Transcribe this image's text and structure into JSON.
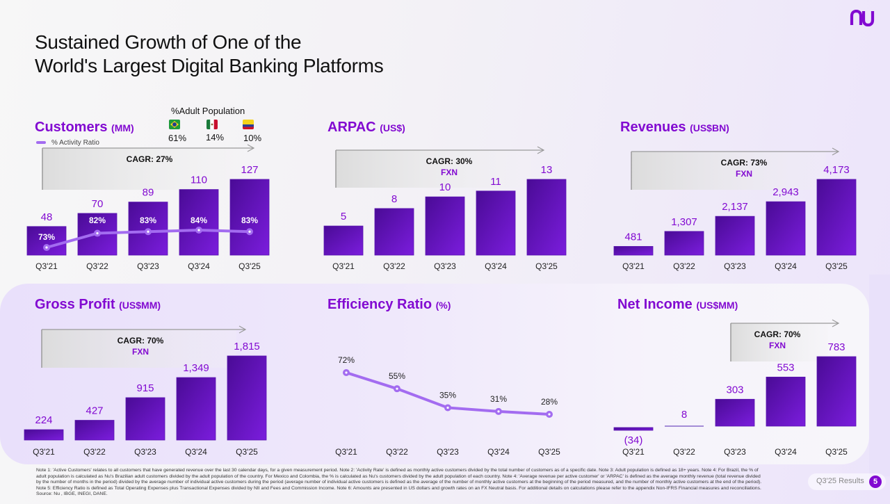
{
  "header": {
    "title_line1": "Sustained Growth of One of the",
    "title_line2": "World's Largest Digital Banking Platforms",
    "logo": "nu"
  },
  "colors": {
    "brand_purple": "#820ad1",
    "bar_dark": "#4a0b96",
    "bar_light": "#7b1ddd",
    "line": "#a36cf0",
    "cagr_box": "#e6e6e6",
    "arrow": "#9a9a9a"
  },
  "customers_extras": {
    "population_title": "%Adult Population",
    "flags": [
      {
        "icon": "brazil-flag-icon",
        "pct": "61%"
      },
      {
        "icon": "mexico-flag-icon",
        "pct": "14%"
      },
      {
        "icon": "colombia-flag-icon",
        "pct": "10%"
      }
    ],
    "legend_label": "% Activity Ratio"
  },
  "chart_data": [
    {
      "id": "customers",
      "type": "bar",
      "title": "Customers",
      "unit": "(MM)",
      "categories": [
        "Q3'21",
        "Q3'22",
        "Q3'23",
        "Q3'24",
        "Q3'25"
      ],
      "values": [
        48,
        70,
        89,
        110,
        127
      ],
      "labels": [
        "48",
        "70",
        "89",
        "110",
        "127"
      ],
      "cagr": "CAGR: 27%",
      "cagr_sub": "",
      "line_series": {
        "name": "% Activity Ratio",
        "values": [
          73,
          82,
          83,
          84,
          83
        ],
        "labels": [
          "73%",
          "82%",
          "83%",
          "84%",
          "83%"
        ]
      }
    },
    {
      "id": "arpac",
      "type": "bar",
      "title": "ARPAC",
      "unit": "(US$)",
      "categories": [
        "Q3'21",
        "Q3'22",
        "Q3'23",
        "Q3'24",
        "Q3'25"
      ],
      "values": [
        5,
        8,
        10,
        11,
        13
      ],
      "labels": [
        "5",
        "8",
        "10",
        "11",
        "13"
      ],
      "cagr": "CAGR: 30%",
      "cagr_sub": "FXN"
    },
    {
      "id": "revenues",
      "type": "bar",
      "title": "Revenues",
      "unit": "(US$BN)",
      "categories": [
        "Q3'21",
        "Q3'22",
        "Q3'23",
        "Q3'24",
        "Q3'25"
      ],
      "values": [
        481,
        1307,
        2137,
        2943,
        4173
      ],
      "labels": [
        "481",
        "1,307",
        "2,137",
        "2,943",
        "4,173"
      ],
      "cagr": "CAGR: 73%",
      "cagr_sub": "FXN"
    },
    {
      "id": "gross-profit",
      "type": "bar",
      "title": "Gross Profit",
      "unit": "(US$MM)",
      "categories": [
        "Q3'21",
        "Q3'22",
        "Q3'23",
        "Q3'24",
        "Q3'25"
      ],
      "values": [
        224,
        427,
        915,
        1349,
        1815
      ],
      "labels": [
        "224",
        "427",
        "915",
        "1,349",
        "1,815"
      ],
      "cagr": "CAGR: 70%",
      "cagr_sub": "FXN"
    },
    {
      "id": "efficiency",
      "type": "line",
      "title": "Efficiency Ratio",
      "unit": "(%)",
      "categories": [
        "Q3'21",
        "Q3'22",
        "Q3'23",
        "Q3'24",
        "Q3'25"
      ],
      "values": [
        72,
        55,
        35,
        31,
        28
      ],
      "labels": [
        "72%",
        "55%",
        "35%",
        "31%",
        "28%"
      ]
    },
    {
      "id": "net-income",
      "type": "bar",
      "title": "Net Income",
      "unit": "(US$MM)",
      "categories": [
        "Q3'21",
        "Q3'22",
        "Q3'23",
        "Q3'24",
        "Q3'25"
      ],
      "values": [
        -34,
        8,
        303,
        553,
        783
      ],
      "labels": [
        "(34)",
        "8",
        "303",
        "553",
        "783"
      ],
      "cagr": "CAGR: 70%",
      "cagr_sub": "FXN"
    }
  ],
  "footer": {
    "notes": "Note 1: 'Active Customers' relates to all customers that have generated revenue over the last 30 calendar days, for a given measurement period. Note 2: 'Activity Rate' is defined as monthly active customers divided by the total number of customers as of a specific date. Note 3: Adult population is defined as 18+ years. Note 4: For Brazil, the % of adult population is calculated as Nu's Brazilian adult customers divided by the adult population of the country. For Mexico and Colombia, the % is calculated as Nu's customers divided by the adult population of each country. Note 4: 'Average revenue per active customer' or 'ARPAC' is defined as the average monthly revenue (total revenue divided by the number of months in the period) divided by the average number of individual active customers during the period (average number of individual active customers is defined as the average of the number of monthly active customers at the beginning of the period measured, and the number of monthly active customers at the end of the period). Note 5: Efficiency Ratio is defined as Total Operating Expenses plus Transactional Expenses divided by NII and Fees and Commission Income. Note 6: Amounts are presented in US dollars and growth rates on an FX Neutral basis. For additional details on calculations please refer to the appendix Non-IFRS Financial measures and reconciliations. Source: Nu , IBGE, INEGI, DANE.",
    "results_label": "Q3'25 Results",
    "page_number": "5"
  }
}
